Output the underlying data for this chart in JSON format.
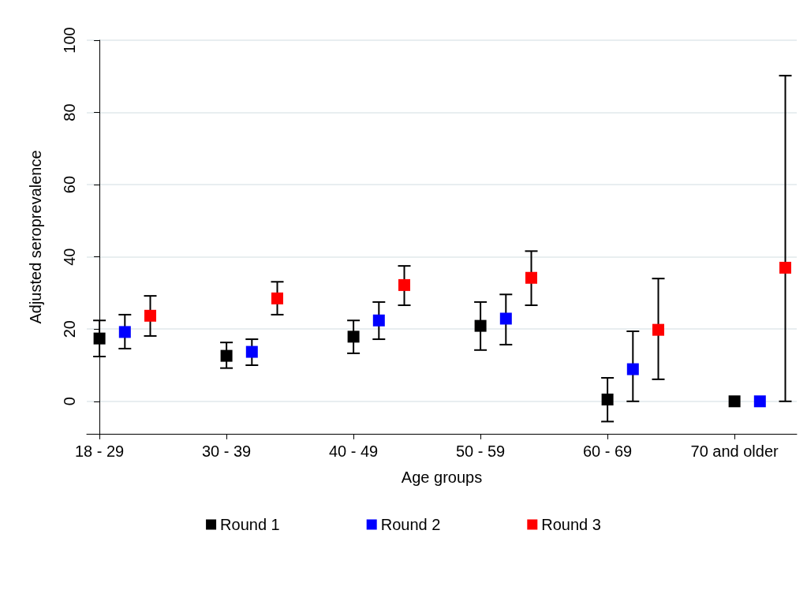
{
  "chart_data": {
    "type": "scatter",
    "xlabel": "Age groups",
    "ylabel": "Adjusted seroprevalence",
    "categories": [
      "18 - 29",
      "30 - 39",
      "40 - 49",
      "50 - 59",
      "60 - 69",
      "70 and older"
    ],
    "series": [
      {
        "name": "Round 1",
        "color": "#000000",
        "values": [
          17.4,
          12.6,
          17.9,
          20.9,
          0.5,
          0
        ],
        "errors": [
          [
            12.4,
            22.4
          ],
          [
            9.2,
            16.3
          ],
          [
            13.3,
            22.4
          ],
          [
            14.2,
            27.5
          ],
          [
            -5.6,
            6.5
          ],
          null
        ]
      },
      {
        "name": "Round 2",
        "color": "#0000ff",
        "values": [
          19.2,
          13.7,
          22.4,
          22.9,
          8.9,
          0
        ],
        "errors": [
          [
            14.6,
            24
          ],
          [
            10,
            17.2
          ],
          [
            17.2,
            27.5
          ],
          [
            15.7,
            29.6
          ],
          [
            0,
            19.4
          ],
          null
        ]
      },
      {
        "name": "Round 3",
        "color": "#ff0000",
        "values": [
          23.7,
          28.5,
          32.2,
          34.2,
          19.8,
          37
        ],
        "errors": [
          [
            18.1,
            29.2
          ],
          [
            24,
            33.1
          ],
          [
            26.6,
            37.5
          ],
          [
            26.6,
            41.6
          ],
          [
            6.1,
            34
          ],
          [
            0,
            90.2
          ]
        ]
      }
    ],
    "ylim": [
      -9,
      100
    ],
    "yticks": [
      0,
      20,
      40,
      60,
      80,
      100
    ],
    "grid": "y",
    "legend": "bottom",
    "marker": "square"
  }
}
